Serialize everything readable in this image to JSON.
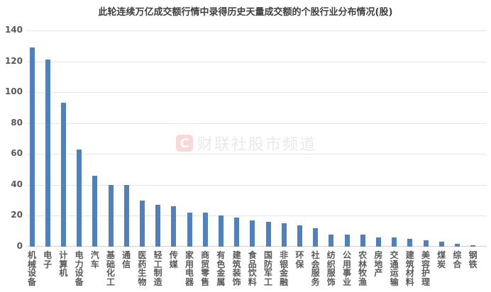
{
  "chart_data": {
    "type": "bar",
    "title": "此轮连续万亿成交额行情中录得历史天量成交额的个股行业分布情况(股)",
    "xlabel": "",
    "ylabel": "",
    "ylim": [
      0,
      140
    ],
    "yticks": [
      0,
      20,
      40,
      60,
      80,
      100,
      120,
      140
    ],
    "grid": true,
    "legend": "none",
    "categories": [
      "机械设备",
      "电子",
      "计算机",
      "电力设备",
      "汽车",
      "基础化工",
      "通信",
      "医药生物",
      "轻工制造",
      "传媒",
      "家用电器",
      "商贸零售",
      "有色金属",
      "建筑装饰",
      "食品饮料",
      "国防军工",
      "非银金融",
      "环保",
      "社会服务",
      "纺织服饰",
      "公用事业",
      "农林牧渔",
      "房地产",
      "交通运输",
      "建筑材料",
      "美容护理",
      "煤炭",
      "综合",
      "钢铁"
    ],
    "values": [
      129,
      121,
      93,
      63,
      46,
      40,
      40,
      30,
      27,
      26,
      22,
      22,
      20,
      19,
      17,
      16,
      15,
      14,
      12,
      8,
      8,
      8,
      6,
      6,
      5,
      4,
      3,
      2,
      1
    ],
    "bar_color": "#4f81bd"
  },
  "watermark": {
    "logo": "C",
    "text": "财联社股市频道"
  }
}
